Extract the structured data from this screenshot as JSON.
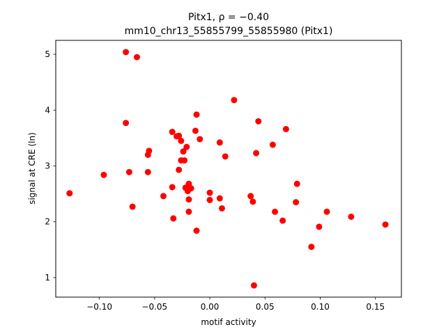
{
  "chart_data": {
    "type": "scatter",
    "title_line1": "Pitx1, ρ = −0.40",
    "title_line2": "mm10_chr13_55855799_55855980 (Pitx1)",
    "xlabel": "motif activity",
    "ylabel": "signal at CRE (ln)",
    "xlim": [
      -0.1395,
      0.1735
    ],
    "ylim": [
      0.65,
      5.25
    ],
    "xticks": [
      -0.1,
      -0.05,
      0.0,
      0.05,
      0.1,
      0.15
    ],
    "xtick_labels": [
      "−0.10",
      "−0.05",
      "0.00",
      "0.05",
      "0.10",
      "0.15"
    ],
    "yticks": [
      1,
      2,
      3,
      4,
      5
    ],
    "ytick_labels": [
      "1",
      "2",
      "3",
      "4",
      "5"
    ],
    "grid": false,
    "marker_color": "#ff0000",
    "points": [
      {
        "x": -0.127,
        "y": 2.51
      },
      {
        "x": -0.096,
        "y": 2.84
      },
      {
        "x": -0.076,
        "y": 5.04
      },
      {
        "x": -0.066,
        "y": 4.95
      },
      {
        "x": -0.076,
        "y": 3.77
      },
      {
        "x": -0.073,
        "y": 2.89
      },
      {
        "x": -0.07,
        "y": 2.27
      },
      {
        "x": -0.055,
        "y": 3.27
      },
      {
        "x": -0.056,
        "y": 3.2
      },
      {
        "x": -0.056,
        "y": 2.89
      },
      {
        "x": -0.042,
        "y": 2.46
      },
      {
        "x": -0.034,
        "y": 3.61
      },
      {
        "x": -0.03,
        "y": 3.53
      },
      {
        "x": -0.028,
        "y": 3.54
      },
      {
        "x": -0.026,
        "y": 3.45
      },
      {
        "x": -0.021,
        "y": 3.34
      },
      {
        "x": -0.024,
        "y": 3.26
      },
      {
        "x": -0.026,
        "y": 3.1
      },
      {
        "x": -0.023,
        "y": 3.1
      },
      {
        "x": -0.028,
        "y": 2.93
      },
      {
        "x": -0.034,
        "y": 2.62
      },
      {
        "x": -0.033,
        "y": 2.06
      },
      {
        "x": -0.022,
        "y": 2.61
      },
      {
        "x": -0.019,
        "y": 2.68
      },
      {
        "x": -0.017,
        "y": 2.6
      },
      {
        "x": -0.02,
        "y": 2.55
      },
      {
        "x": -0.019,
        "y": 2.4
      },
      {
        "x": -0.019,
        "y": 2.18
      },
      {
        "x": -0.012,
        "y": 3.92
      },
      {
        "x": -0.013,
        "y": 3.63
      },
      {
        "x": -0.009,
        "y": 3.48
      },
      {
        "x": -0.012,
        "y": 1.84
      },
      {
        "x": 0.0,
        "y": 2.52
      },
      {
        "x": 0.0,
        "y": 2.39
      },
      {
        "x": 0.009,
        "y": 3.42
      },
      {
        "x": 0.014,
        "y": 3.17
      },
      {
        "x": 0.009,
        "y": 2.42
      },
      {
        "x": 0.011,
        "y": 2.24
      },
      {
        "x": 0.022,
        "y": 4.18
      },
      {
        "x": 0.044,
        "y": 3.8
      },
      {
        "x": 0.042,
        "y": 3.23
      },
      {
        "x": 0.037,
        "y": 2.46
      },
      {
        "x": 0.039,
        "y": 2.36
      },
      {
        "x": 0.04,
        "y": 0.86
      },
      {
        "x": 0.057,
        "y": 3.38
      },
      {
        "x": 0.069,
        "y": 3.66
      },
      {
        "x": 0.059,
        "y": 2.18
      },
      {
        "x": 0.066,
        "y": 2.02
      },
      {
        "x": 0.079,
        "y": 2.68
      },
      {
        "x": 0.078,
        "y": 2.35
      },
      {
        "x": 0.092,
        "y": 1.55
      },
      {
        "x": 0.099,
        "y": 1.91
      },
      {
        "x": 0.106,
        "y": 2.18
      },
      {
        "x": 0.128,
        "y": 2.09
      },
      {
        "x": 0.159,
        "y": 1.95
      }
    ]
  }
}
